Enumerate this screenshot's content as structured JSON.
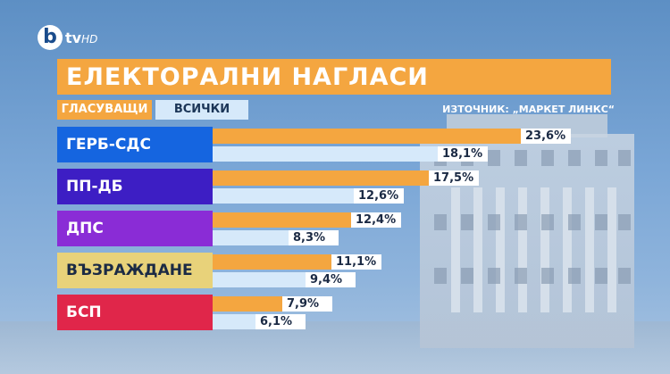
{
  "logo": {
    "mark": "b",
    "text": "tv",
    "suffix": "HD"
  },
  "chart_data": {
    "type": "bar",
    "title": "ЕЛЕКТОРАЛНИ НАГЛАСИ",
    "source": "ИЗТОЧНИК: „МАРКЕТ ЛИНКС“",
    "categories": [
      "ГЕРБ-СДС",
      "ПП-ДБ",
      "ДПС",
      "ВЪЗРАЖДАНЕ",
      "БСП"
    ],
    "category_colors": [
      "#1565e0",
      "#3d1ec4",
      "#8a2cd6",
      "#e8d27a",
      "#e0264a"
    ],
    "category_text_colors": [
      "#ffffff",
      "#ffffff",
      "#ffffff",
      "#1b2a44",
      "#ffffff"
    ],
    "series": [
      {
        "name": "ГЛАСУВАЩИ",
        "color": "#f4a640",
        "values": [
          23.6,
          17.5,
          12.4,
          11.1,
          7.9
        ],
        "labels": [
          "23,6%",
          "17,5%",
          "12,4%",
          "11,1%",
          "7,9%"
        ]
      },
      {
        "name": "ВСИЧКИ",
        "color": "#d6e9fa",
        "values": [
          18.1,
          12.6,
          8.3,
          9.4,
          6.1
        ],
        "labels": [
          "18,1%",
          "12,6%",
          "8,3%",
          "9,4%",
          "6,1%"
        ]
      }
    ],
    "orientation": "horizontal",
    "legend": "top-left",
    "grid": false
  }
}
